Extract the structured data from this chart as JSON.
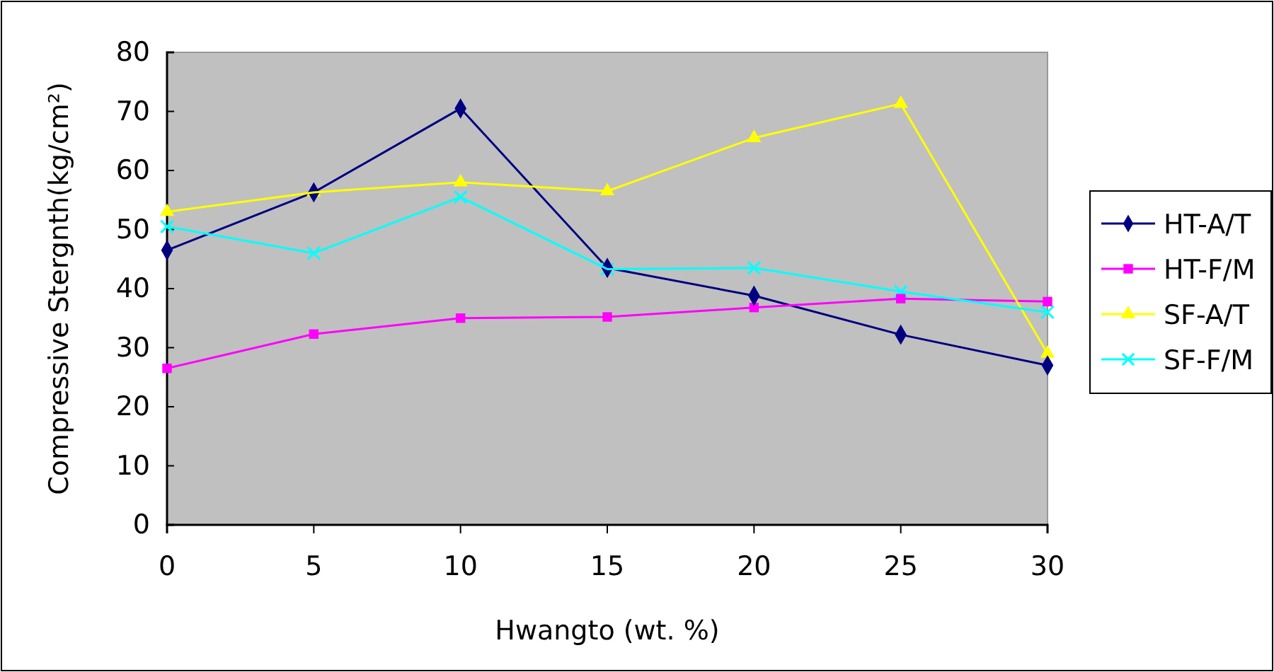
{
  "chart_data": {
    "type": "line",
    "xlabel": "Hwangto (wt. %)",
    "ylabel": "Compressive Stergnth(kg/cm²)",
    "x": [
      0,
      5,
      10,
      15,
      20,
      25,
      30
    ],
    "xlim": [
      0,
      30
    ],
    "xticks": [
      0,
      5,
      10,
      15,
      20,
      25,
      30
    ],
    "ylim": [
      0,
      80
    ],
    "yticks": [
      0,
      10,
      20,
      30,
      40,
      50,
      60,
      70,
      80
    ],
    "grid": false,
    "legend": "right",
    "series": [
      {
        "name": "HT-A/T",
        "color": "#000080",
        "marker": "diamond",
        "values": [
          46.5,
          56.3,
          70.5,
          43.5,
          38.8,
          32.2,
          27
        ]
      },
      {
        "name": "HT-F/M",
        "color": "#ff00ff",
        "marker": "square",
        "values": [
          26.5,
          32.3,
          35,
          35.2,
          36.8,
          38.3,
          37.8
        ]
      },
      {
        "name": "SF-A/T",
        "color": "#ffff00",
        "marker": "triangle",
        "values": [
          53,
          56.3,
          58,
          56.5,
          65.5,
          71.3,
          29
        ]
      },
      {
        "name": "SF-F/M",
        "color": "#00ffff",
        "marker": "cross",
        "values": [
          50.5,
          46,
          55.5,
          43.3,
          43.5,
          39.5,
          36
        ]
      }
    ]
  }
}
